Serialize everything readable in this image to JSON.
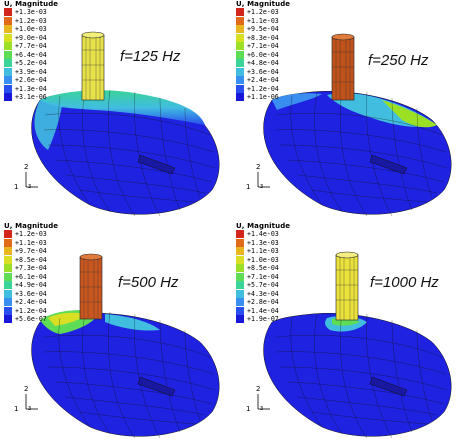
{
  "panels": [
    {
      "id": "p1",
      "legend_title": "U, Magnitude",
      "legend_values": [
        "+1.3e-03",
        "+1.2e-03",
        "+1.0e-03",
        "+9.0e-04",
        "+7.7e-04",
        "+6.4e-04",
        "+5.2e-04",
        "+3.9e-04",
        "+2.6e-04",
        "+1.3e-04",
        "+3.1e-06"
      ],
      "freq_label": "f=125 Hz",
      "post_color": "#e8e24a",
      "axis": {
        "up": "2",
        "right": "1",
        "origin": "3"
      }
    },
    {
      "id": "p2",
      "legend_title": "U, Magnitude",
      "legend_values": [
        "+1.2e-03",
        "+1.1e-03",
        "+9.5e-04",
        "+8.3e-04",
        "+7.1e-04",
        "+6.0e-04",
        "+4.8e-04",
        "+3.6e-04",
        "+2.4e-04",
        "+1.2e-04",
        "+1.1e-06"
      ],
      "freq_label": "f=250 Hz",
      "post_color": "#c0521c",
      "axis": {
        "up": "2",
        "right": "1",
        "origin": "3"
      }
    },
    {
      "id": "p3",
      "legend_title": "U, Magnitude",
      "legend_values": [
        "+1.2e-03",
        "+1.1e-03",
        "+9.7e-04",
        "+8.5e-04",
        "+7.3e-04",
        "+6.1e-04",
        "+4.9e-04",
        "+3.6e-04",
        "+2.4e-04",
        "+1.2e-04",
        "+5.6e-07"
      ],
      "freq_label": "f=500 Hz",
      "post_color": "#c8561e",
      "axis": {
        "up": "2",
        "right": "1",
        "origin": "3"
      }
    },
    {
      "id": "p4",
      "legend_title": "U, Magnitude",
      "legend_values": [
        "+1.4e-03",
        "+1.3e-03",
        "+1.1e-03",
        "+1.0e-03",
        "+8.5e-04",
        "+7.1e-04",
        "+5.7e-04",
        "+4.3e-04",
        "+2.8e-04",
        "+1.4e-04",
        "+1.9e-07"
      ],
      "freq_label": "f=1000 Hz",
      "post_color": "#ece23c",
      "axis": {
        "up": "2",
        "right": "1",
        "origin": "3"
      }
    }
  ],
  "legend_colors": [
    "#d2261c",
    "#e06a1a",
    "#e9b61c",
    "#d9df22",
    "#9be024",
    "#5fdc56",
    "#3ad39a",
    "#41bde0",
    "#3a8ef0",
    "#2850ee",
    "#1818d8"
  ]
}
